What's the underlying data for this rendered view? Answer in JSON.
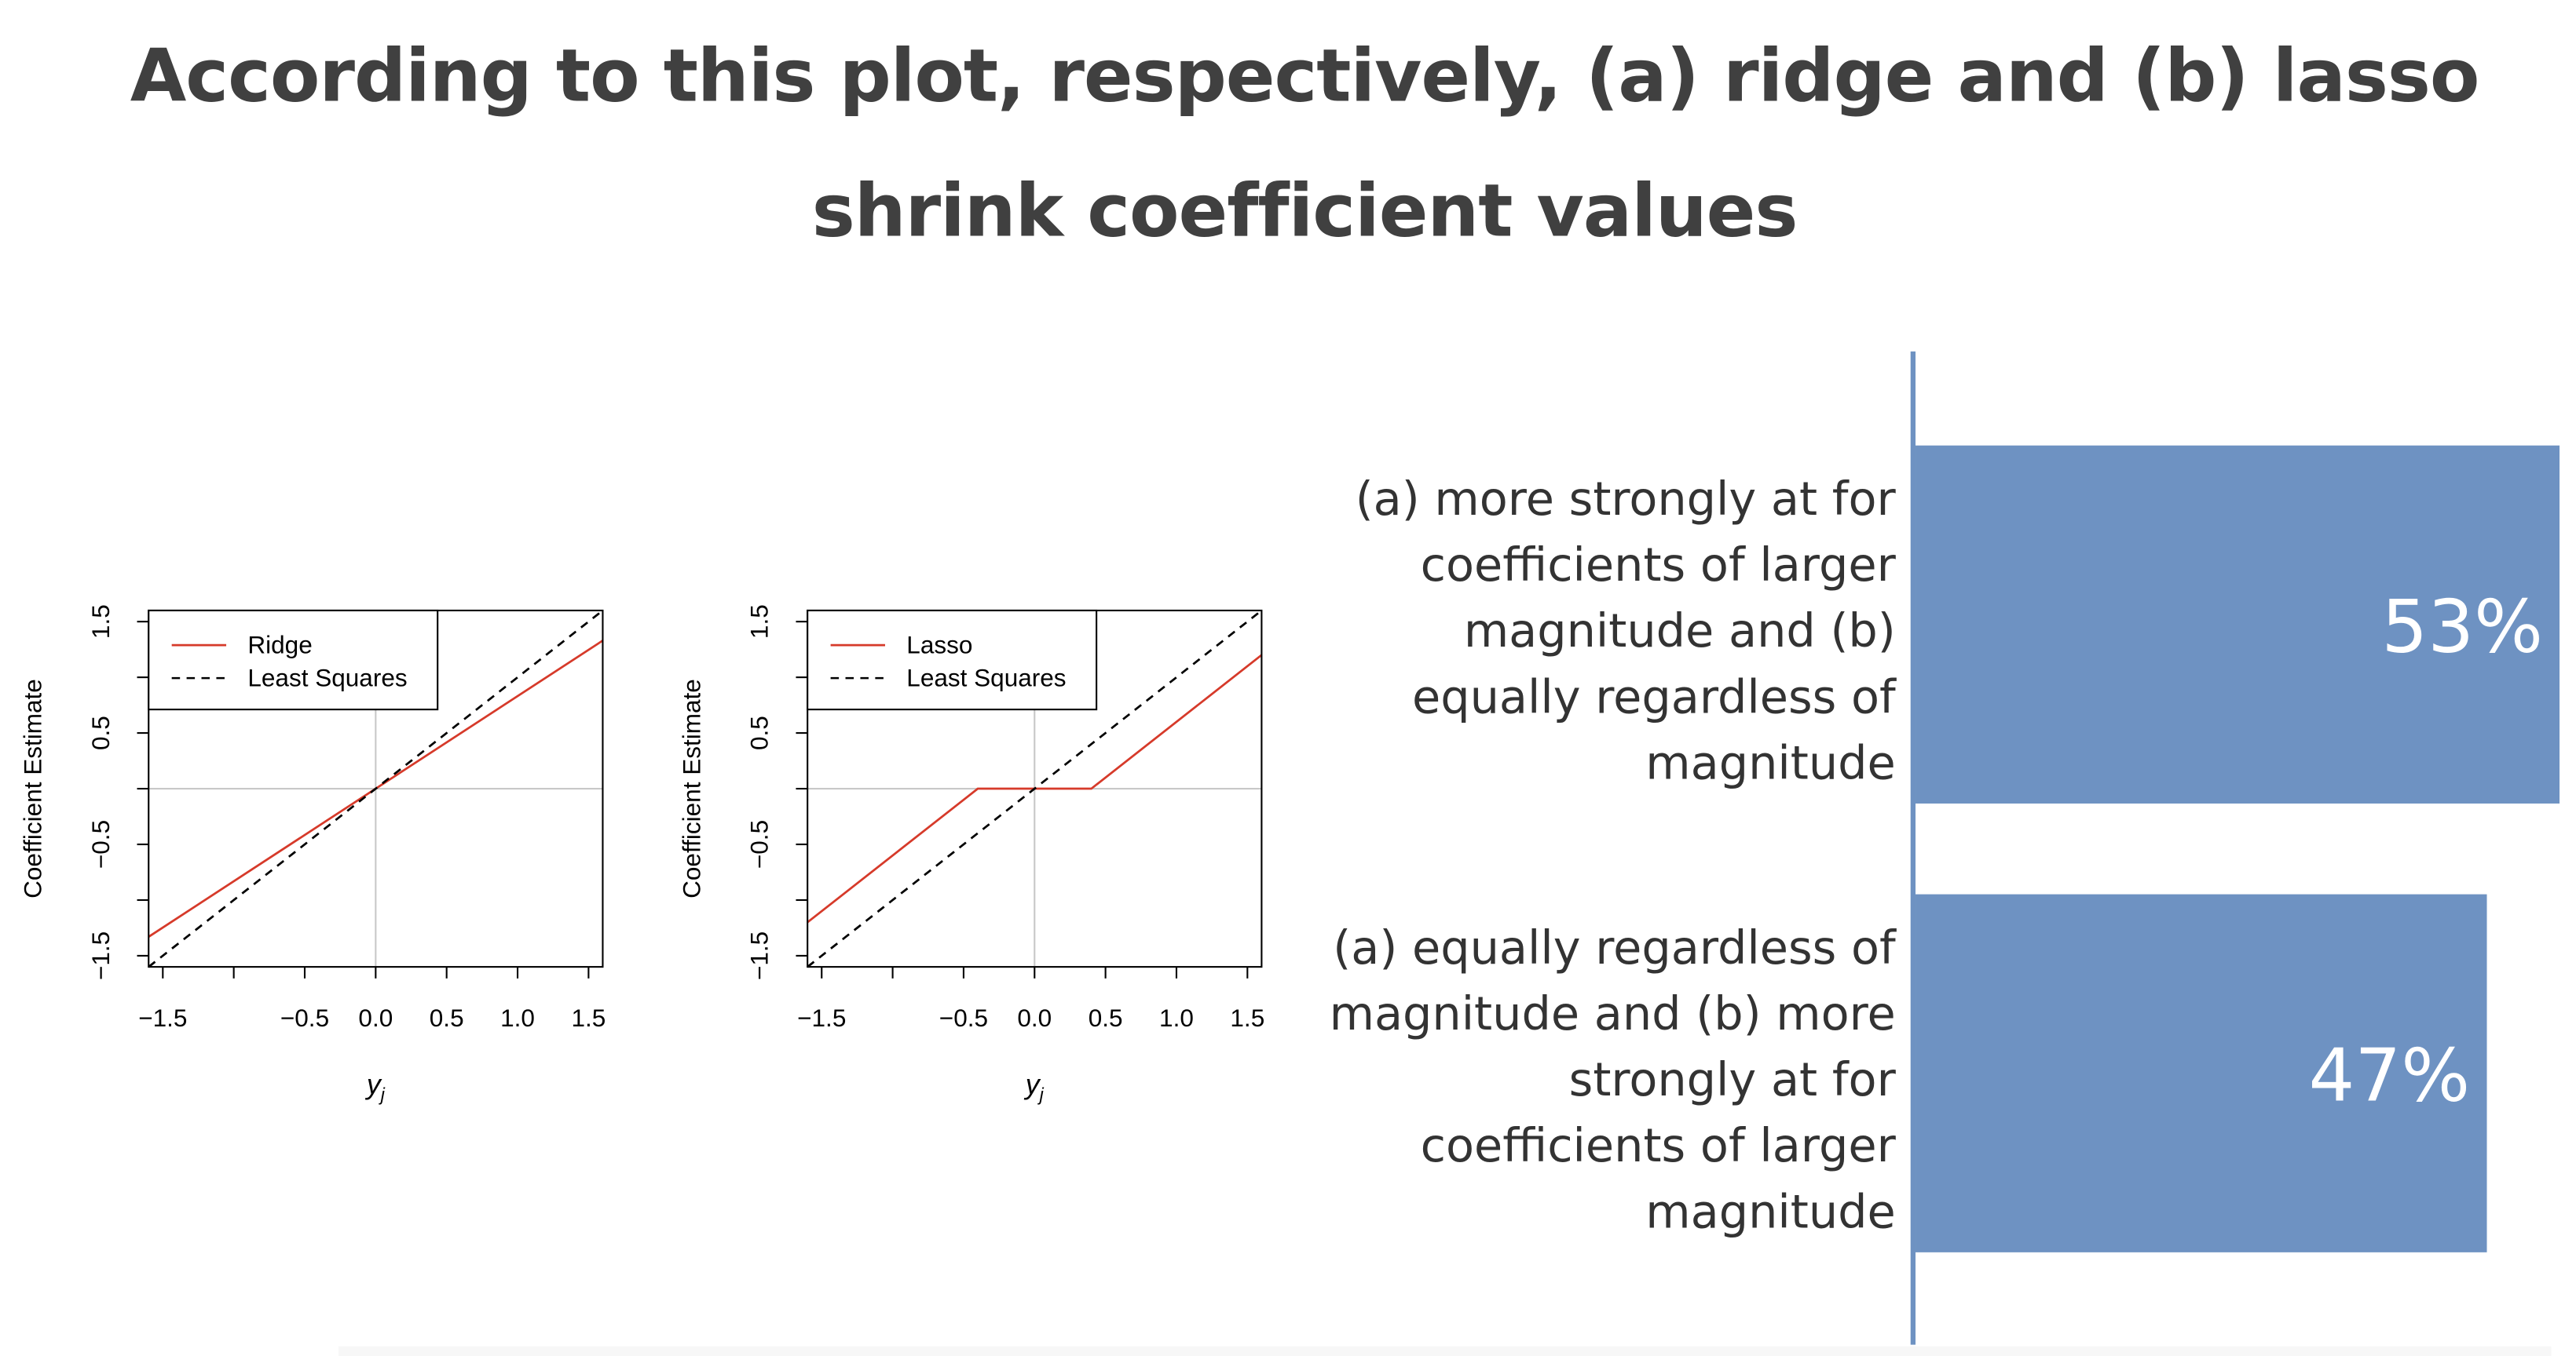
{
  "question": {
    "line1": "According to this plot, respectively, (a) ridge and (b) lasso",
    "line2": "shrink coefficient values"
  },
  "figure": {
    "ridge_plot": {
      "ylabel": "Coefficient Estimate",
      "xlabel": "y",
      "xlabel_sub": "j",
      "legend": [
        "Ridge",
        "Least Squares"
      ],
      "xticks": [
        "−1.5",
        "−0.5",
        "0.0",
        "0.5",
        "1.0",
        "1.5"
      ],
      "yticks": [
        "−1.5",
        "−0.5",
        "0.5",
        "1.5"
      ]
    },
    "lasso_plot": {
      "ylabel": "Coefficient Estimate",
      "xlabel": "y",
      "xlabel_sub": "j",
      "legend": [
        "Lasso",
        "Least Squares"
      ],
      "xticks": [
        "−1.5",
        "−0.5",
        "0.0",
        "0.5",
        "1.0",
        "1.5"
      ],
      "yticks": [
        "−1.5",
        "−0.5",
        "0.5",
        "1.5"
      ]
    },
    "colors": {
      "shrinkage_line": "#d63a2a",
      "least_squares_line": "#000000",
      "zero_lines": "#c8c8c8",
      "bar": "#6e92c2"
    }
  },
  "chart_data": [
    {
      "type": "line",
      "legend": [
        "Ridge",
        "Least Squares"
      ],
      "xlabel": "y_j",
      "ylabel": "Coefficient Estimate",
      "xlim": [
        -1.6,
        1.6
      ],
      "ylim": [
        -1.6,
        1.6
      ],
      "xticks": [
        -1.5,
        -1.0,
        -0.5,
        0.0,
        0.5,
        1.0,
        1.5
      ],
      "yticks": [
        -1.5,
        -1.0,
        -0.5,
        0.0,
        0.5,
        1.0,
        1.5
      ],
      "legend_position": "top-left",
      "series": [
        {
          "name": "Ridge",
          "style": "solid",
          "x": [
            -1.6,
            1.6
          ],
          "y": [
            -1.33,
            1.33
          ]
        },
        {
          "name": "Least Squares",
          "style": "dashed",
          "x": [
            -1.6,
            1.6
          ],
          "y": [
            -1.6,
            1.6
          ]
        }
      ]
    },
    {
      "type": "line",
      "legend": [
        "Lasso",
        "Least Squares"
      ],
      "xlabel": "y_j",
      "ylabel": "Coefficient Estimate",
      "xlim": [
        -1.6,
        1.6
      ],
      "ylim": [
        -1.6,
        1.6
      ],
      "xticks": [
        -1.5,
        -1.0,
        -0.5,
        0.0,
        0.5,
        1.0,
        1.5
      ],
      "yticks": [
        -1.5,
        -1.0,
        -0.5,
        0.0,
        0.5,
        1.0,
        1.5
      ],
      "legend_position": "top-left",
      "series": [
        {
          "name": "Lasso",
          "style": "solid",
          "x": [
            -1.6,
            -0.4,
            0.4,
            1.6
          ],
          "y": [
            -1.2,
            0.0,
            0.0,
            1.2
          ]
        },
        {
          "name": "Least Squares",
          "style": "dashed",
          "x": [
            -1.6,
            1.6
          ],
          "y": [
            -1.6,
            1.6
          ]
        }
      ]
    },
    {
      "type": "bar",
      "orientation": "horizontal",
      "categories": [
        "(a) more strongly at for coefficients of larger magnitude and (b) equally regardless of magnitude",
        "(a) equally regardless of magnitude and (b) more strongly at for coefficients of larger magnitude"
      ],
      "values": [
        53,
        47
      ],
      "value_labels": [
        "53%",
        "47%"
      ],
      "xlim": [
        0,
        53
      ]
    }
  ],
  "answers": [
    {
      "lines": [
        "(a) more strongly at for",
        "coefficients of larger",
        "magnitude and (b)",
        "equally regardless of",
        "magnitude"
      ],
      "value_label": "53%"
    },
    {
      "lines": [
        "(a) equally regardless of",
        "magnitude and (b) more",
        "strongly at for",
        "coefficients of larger",
        "magnitude"
      ],
      "value_label": "47%"
    }
  ]
}
